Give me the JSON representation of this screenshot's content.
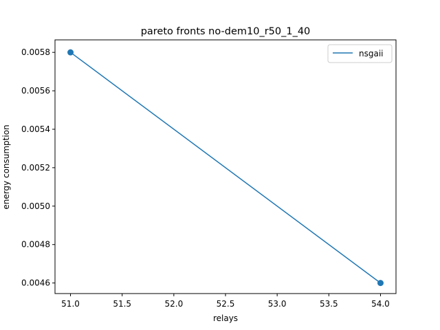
{
  "chart_data": {
    "type": "line",
    "title": "pareto fronts no-dem10_r50_1_40",
    "xlabel": "relays",
    "ylabel": "energy consumption",
    "xlim": [
      50.85,
      54.15
    ],
    "ylim": [
      0.004545,
      0.005865
    ],
    "x_ticks": [
      51.0,
      51.5,
      52.0,
      52.5,
      53.0,
      53.5,
      54.0
    ],
    "x_tick_labels": [
      "51.0",
      "51.5",
      "52.0",
      "52.5",
      "53.0",
      "53.5",
      "54.0"
    ],
    "y_ticks": [
      0.0046,
      0.0048,
      0.005,
      0.0052,
      0.0054,
      0.0056,
      0.0058
    ],
    "y_tick_labels": [
      "0.0046",
      "0.0048",
      "0.0050",
      "0.0052",
      "0.0054",
      "0.0056",
      "0.0058"
    ],
    "grid": false,
    "legend_position": "top-right",
    "series": [
      {
        "name": "nsgaii",
        "color": "#1f77b4",
        "marker": "circle",
        "x": [
          51,
          54
        ],
        "y": [
          0.0058,
          0.0046
        ]
      }
    ]
  }
}
